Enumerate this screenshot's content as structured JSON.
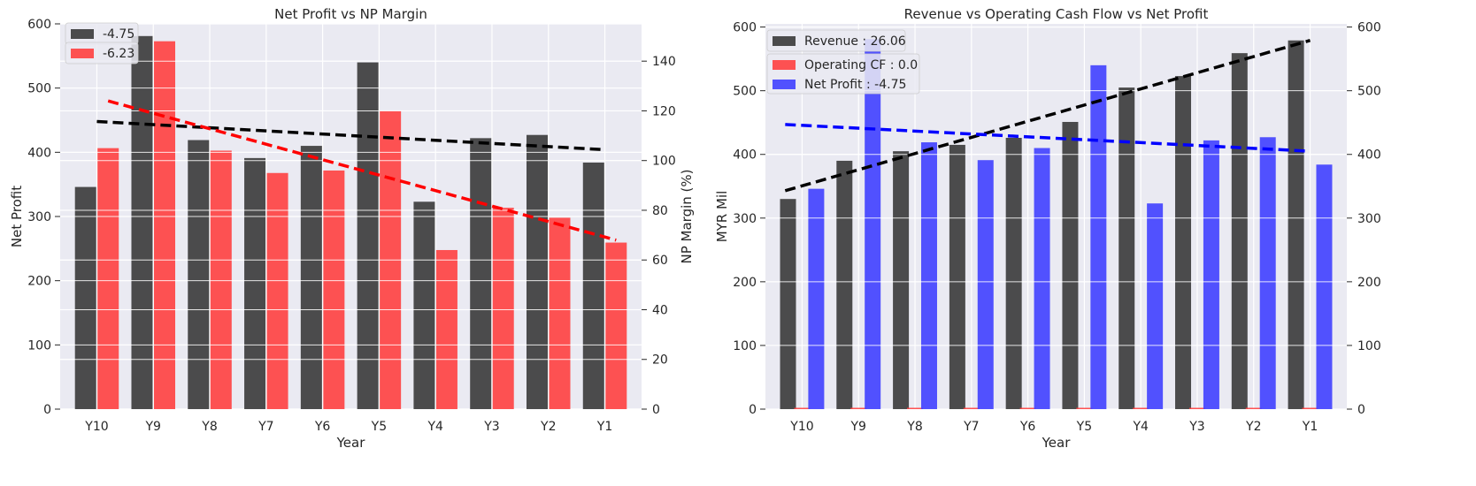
{
  "chart_data": [
    {
      "type": "bar",
      "title": "Net Profit vs NP Margin",
      "xlabel": "Year",
      "ylabel": "Net Profit",
      "ylabel_right": "NP Margin (%)",
      "categories": [
        "Y10",
        "Y9",
        "Y8",
        "Y7",
        "Y6",
        "Y5",
        "Y4",
        "Y3",
        "Y2",
        "Y1"
      ],
      "ylim": [
        0,
        600
      ],
      "ylim_right": [
        0,
        155
      ],
      "yticks": [
        0,
        100,
        200,
        300,
        400,
        500,
        600
      ],
      "yticks_right": [
        0,
        20,
        40,
        60,
        80,
        100,
        120,
        140
      ],
      "series": [
        {
          "name": "-4.75",
          "axis": "left",
          "color": "#3a3a3a",
          "values": [
            346,
            581,
            419,
            391,
            410,
            540,
            323,
            422,
            427,
            384
          ]
        },
        {
          "name": "-6.23",
          "axis": "right",
          "color": "#ff4040",
          "values": [
            105,
            148,
            104,
            95,
            96,
            120,
            64,
            81,
            77,
            67
          ]
        }
      ],
      "trendlines": [
        {
          "axis": "left",
          "color": "#000000",
          "from": 448,
          "to": 404
        },
        {
          "axis": "right",
          "color": "#ff0000",
          "from": 124,
          "to": 68
        }
      ],
      "legend": "top-left",
      "grid": true
    },
    {
      "type": "bar",
      "title": "Revenue vs Operating Cash Flow vs Net Profit",
      "xlabel": "Year",
      "ylabel": "MYR Mil",
      "categories": [
        "Y10",
        "Y9",
        "Y8",
        "Y7",
        "Y6",
        "Y5",
        "Y4",
        "Y3",
        "Y2",
        "Y1"
      ],
      "ylim": [
        0,
        605
      ],
      "yticks": [
        0,
        100,
        200,
        300,
        400,
        500,
        600
      ],
      "series": [
        {
          "name": "Revenue : 26.06",
          "color": "#3a3a3a",
          "values": [
            330,
            390,
            405,
            415,
            426,
            451,
            505,
            523,
            559,
            579
          ]
        },
        {
          "name": "Operating CF : 0.0",
          "color": "#ff4040",
          "values": [
            1,
            1,
            1,
            1,
            1,
            1,
            1,
            1,
            1,
            1
          ]
        },
        {
          "name": "Net Profit : -4.75",
          "color": "#4040ff",
          "values": [
            346,
            581,
            419,
            391,
            410,
            540,
            323,
            422,
            427,
            384
          ]
        }
      ],
      "trendlines": [
        {
          "color": "#000000",
          "from": 343,
          "to": 579
        },
        {
          "color": "#0000ff",
          "from": 447,
          "to": 405
        }
      ],
      "legend": "top-left",
      "grid": true
    }
  ]
}
